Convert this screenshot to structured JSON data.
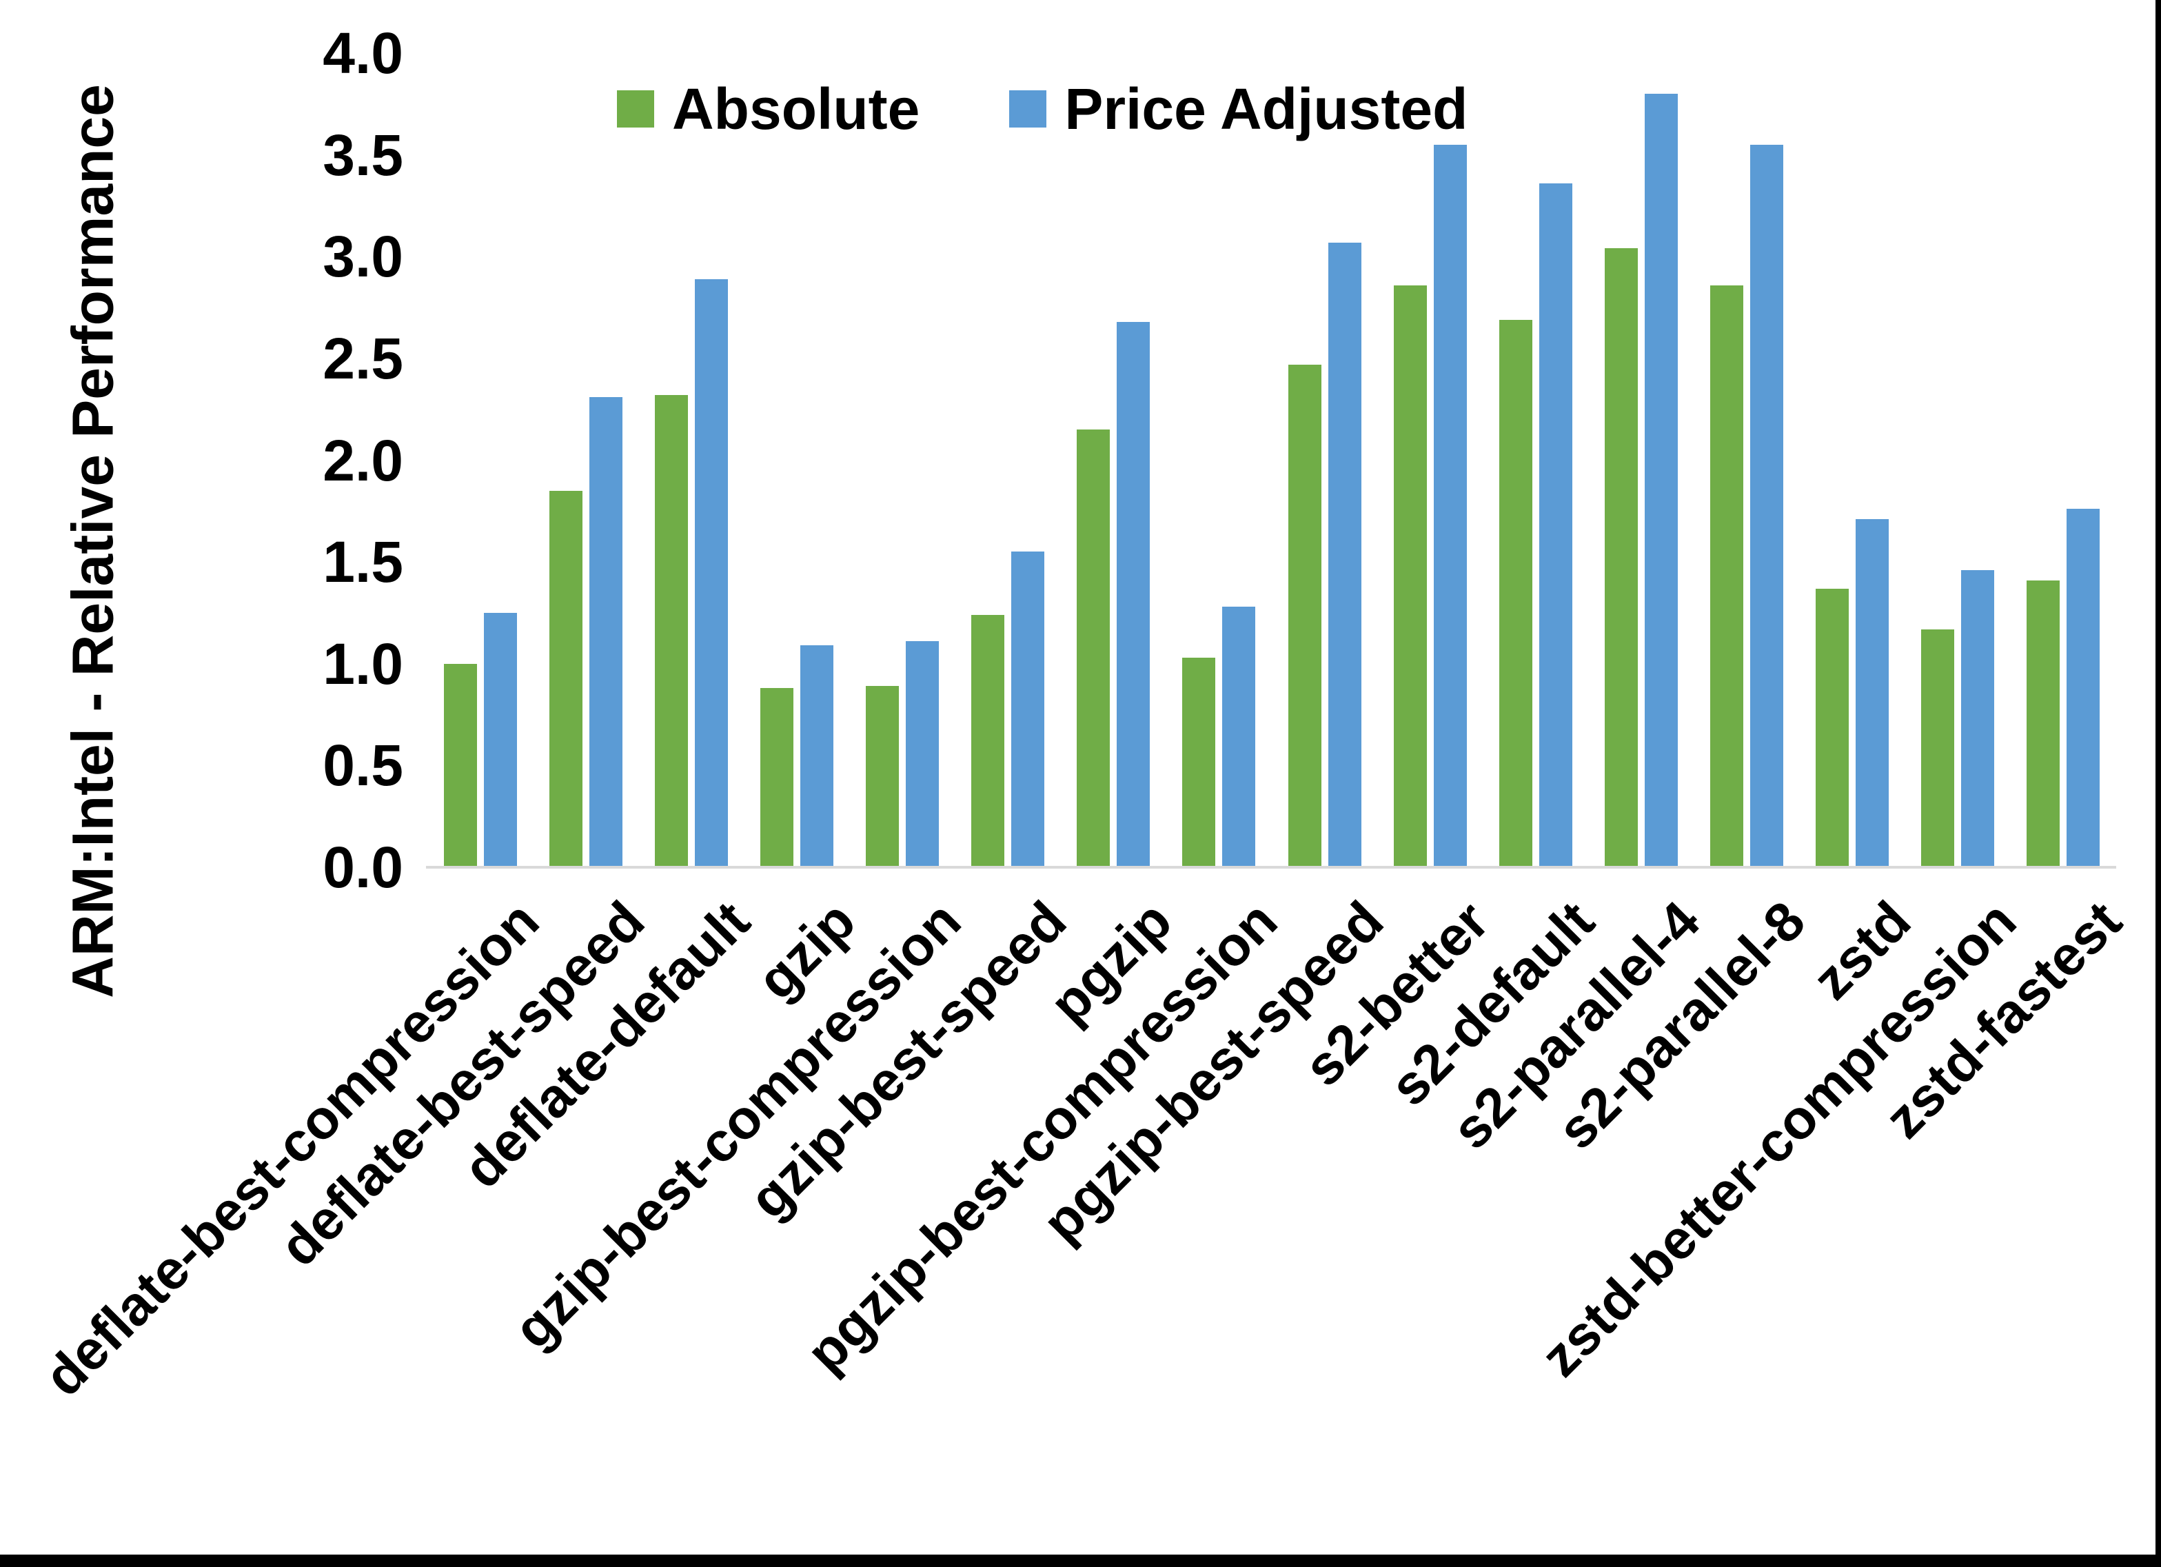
{
  "page": {
    "background": "#ffffff",
    "border_color": "#000000"
  },
  "chart_data": {
    "type": "bar",
    "title": "",
    "xlabel": "",
    "ylabel": "ARM:Intel - Relative Performance",
    "ylim": [
      0.0,
      4.0
    ],
    "ytick_step": 0.5,
    "yticks": [
      "0.0",
      "0.5",
      "1.0",
      "1.5",
      "2.0",
      "2.5",
      "3.0",
      "3.5",
      "4.0"
    ],
    "grid": false,
    "legend_position": "top-center",
    "axis_line_color": "#d9d9d9",
    "text_color": "#000000",
    "categories": [
      "deflate-best-compression",
      "deflate-best-speed",
      "deflate-default",
      "gzip",
      "gzip-best-compression",
      "gzip-best-speed",
      "pgzip",
      "pgzip-best-compression",
      "pgzip-best-speed",
      "s2-better",
      "s2-default",
      "s2-parallel-4",
      "s2-parallel-8",
      "zstd",
      "zstd-better-compression",
      "zstd-fastest"
    ],
    "series": [
      {
        "name": "Absolute",
        "color": "#70AD47",
        "values": [
          1.0,
          1.85,
          2.32,
          0.88,
          0.89,
          1.24,
          2.15,
          1.03,
          2.47,
          2.86,
          2.69,
          3.04,
          2.86,
          1.37,
          1.17,
          1.41
        ]
      },
      {
        "name": "Price Adjusted",
        "color": "#5B9BD5",
        "values": [
          1.25,
          2.31,
          2.89,
          1.09,
          1.11,
          1.55,
          2.68,
          1.28,
          3.07,
          3.55,
          3.36,
          3.8,
          3.55,
          1.71,
          1.46,
          1.76
        ]
      }
    ]
  }
}
